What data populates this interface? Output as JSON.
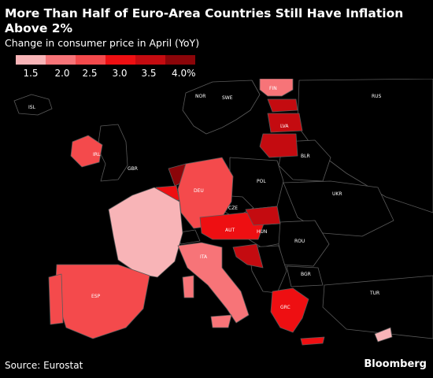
{
  "header": {
    "title": "More Than Half of Euro-Area Countries Still Have Inflation Above 2%",
    "subtitle": "Change in consumer price in April (YoY)"
  },
  "legend": {
    "ticks": [
      "1.5",
      "2.0",
      "2.5",
      "3.0",
      "3.5",
      "4.0%"
    ],
    "colors": [
      "#f8b4b7",
      "#f77478",
      "#f44a4c",
      "#ee0f12",
      "#c40b10",
      "#8b0509"
    ]
  },
  "map": {
    "labels": {
      "isl": "ISL",
      "nor": "NOR",
      "swe": "SWE",
      "fin": "FIN",
      "rus": "RUS",
      "lva": "LVA",
      "blr": "BLR",
      "irl": "IRL",
      "gbr": "GBR",
      "deu": "DEU",
      "pol": "POL",
      "ukr": "UKR",
      "cze": "CZE",
      "aut": "AUT",
      "hun": "HUN",
      "rou": "ROU",
      "ita": "ITA",
      "bgr": "BGR",
      "esp": "ESP",
      "grc": "GRC",
      "tur": "TUR"
    },
    "colors": {
      "non_euro": "#000000",
      "border": "#5a5a5a"
    }
  },
  "footer": {
    "source": "Source: Eurostat",
    "brand": "Bloomberg"
  }
}
